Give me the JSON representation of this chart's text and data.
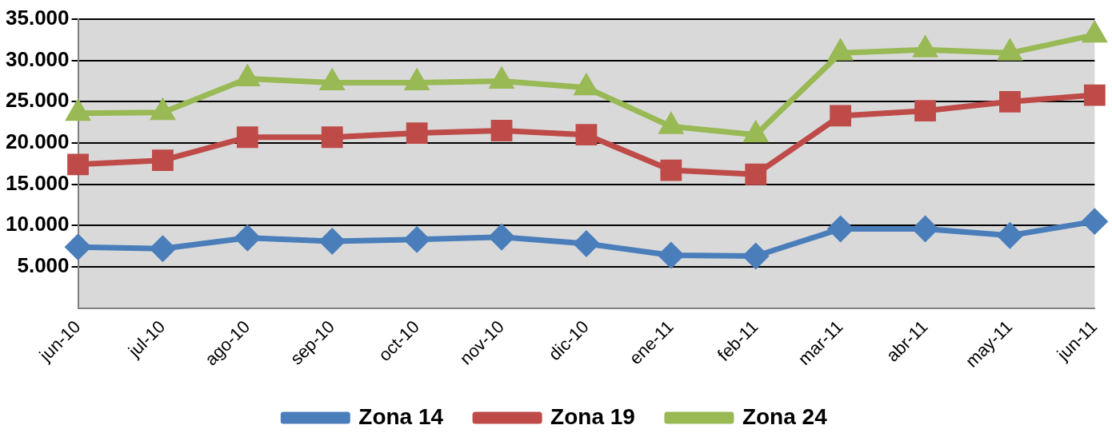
{
  "chart_data": {
    "type": "line",
    "categories": [
      "jun-10",
      "jul-10",
      "ago-10",
      "sep-10",
      "oct-10",
      "nov-10",
      "dic-10",
      "ene-11",
      "feb-11",
      "mar-11",
      "abr-11",
      "may-11",
      "jun-11"
    ],
    "series": [
      {
        "name": "Zona 14",
        "color": "#4a7ebb",
        "marker": "diamond",
        "values": [
          7400,
          7200,
          8500,
          8100,
          8300,
          8600,
          7800,
          6400,
          6300,
          9600,
          9600,
          8800,
          10500
        ]
      },
      {
        "name": "Zona 19",
        "color": "#be4b48",
        "marker": "square",
        "values": [
          17400,
          17900,
          20700,
          20700,
          21200,
          21500,
          21000,
          16700,
          16200,
          23300,
          23900,
          25000,
          25800
        ]
      },
      {
        "name": "Zona 24",
        "color": "#98b954",
        "marker": "triangle",
        "values": [
          23600,
          23700,
          27800,
          27300,
          27300,
          27500,
          26700,
          22000,
          21000,
          30900,
          31300,
          30900,
          33100
        ]
      }
    ],
    "ylim": [
      0,
      35000
    ],
    "yticks": [
      {
        "value": 5000,
        "label": "5.000"
      },
      {
        "value": 10000,
        "label": "10.000"
      },
      {
        "value": 15000,
        "label": "15.000"
      },
      {
        "value": 20000,
        "label": "20.000"
      },
      {
        "value": 25000,
        "label": "25.000"
      },
      {
        "value": 30000,
        "label": "30.000"
      },
      {
        "value": 35000,
        "label": "35.000"
      }
    ],
    "grid": "y",
    "legend": "bottom",
    "line_style": "solid"
  }
}
